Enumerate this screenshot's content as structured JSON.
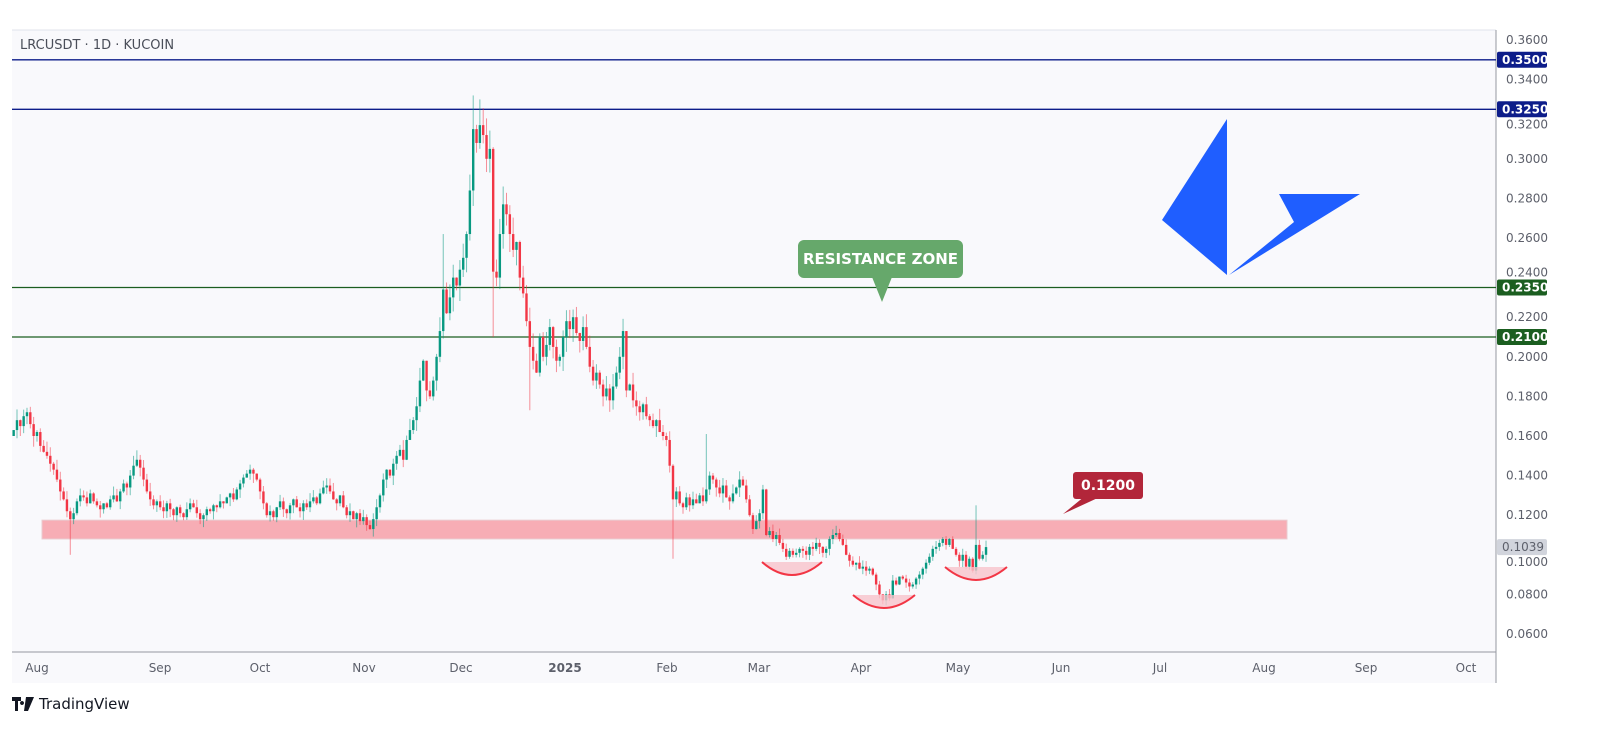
{
  "header": {
    "symbol": "LRCUSDT · 1D · KUCOIN"
  },
  "branding": {
    "name": "TradingView"
  },
  "colors": {
    "up": "#089981",
    "down": "#f23645",
    "navy_line": "#0d1d8a",
    "green_line": "#1b5e20",
    "zone": "#f7a9b2",
    "cup": "#f23645",
    "logo": "#1f5eff",
    "resistance_callout": "#66a86b",
    "level_callout": "#b2263a"
  },
  "chart_data": {
    "type": "candlestick",
    "title": "LRCUSDT · 1D · KUCOIN",
    "interval": "1D",
    "ylim": [
      0.05,
      0.365
    ],
    "y_ticks": [
      "0.0600",
      "0.0800",
      "0.1000",
      "0.1200",
      "0.1400",
      "0.1600",
      "0.1800",
      "0.2000",
      "0.2200",
      "0.2400",
      "0.2600",
      "0.2800",
      "0.3000",
      "0.3200",
      "0.3400",
      "0.3600"
    ],
    "x_ticks": [
      "Aug",
      "Sep",
      "Oct",
      "Nov",
      "Dec",
      "2025",
      "Feb",
      "Mar",
      "Apr",
      "May",
      "Jun",
      "Jul",
      "Aug",
      "Sep",
      "Oct"
    ],
    "grid": false,
    "first_open": 0.16,
    "closes": [
      0.163,
      0.168,
      0.165,
      0.17,
      0.172,
      0.166,
      0.16,
      0.162,
      0.155,
      0.152,
      0.15,
      0.146,
      0.143,
      0.138,
      0.132,
      0.128,
      0.122,
      0.118,
      0.121,
      0.127,
      0.13,
      0.129,
      0.126,
      0.131,
      0.127,
      0.125,
      0.123,
      0.126,
      0.124,
      0.128,
      0.13,
      0.127,
      0.132,
      0.136,
      0.134,
      0.14,
      0.145,
      0.148,
      0.144,
      0.138,
      0.132,
      0.128,
      0.125,
      0.127,
      0.124,
      0.122,
      0.126,
      0.123,
      0.12,
      0.124,
      0.121,
      0.119,
      0.123,
      0.126,
      0.124,
      0.121,
      0.118,
      0.12,
      0.123,
      0.122,
      0.125,
      0.124,
      0.127,
      0.126,
      0.129,
      0.131,
      0.128,
      0.133,
      0.136,
      0.139,
      0.141,
      0.143,
      0.141,
      0.138,
      0.132,
      0.126,
      0.12,
      0.122,
      0.119,
      0.124,
      0.127,
      0.123,
      0.121,
      0.125,
      0.128,
      0.124,
      0.122,
      0.126,
      0.124,
      0.127,
      0.129,
      0.126,
      0.131,
      0.134,
      0.135,
      0.132,
      0.128,
      0.126,
      0.13,
      0.124,
      0.12,
      0.122,
      0.118,
      0.121,
      0.117,
      0.119,
      0.115,
      0.113,
      0.118,
      0.124,
      0.13,
      0.138,
      0.143,
      0.14,
      0.146,
      0.15,
      0.153,
      0.148,
      0.158,
      0.163,
      0.168,
      0.175,
      0.188,
      0.198,
      0.183,
      0.18,
      0.188,
      0.2,
      0.213,
      0.234,
      0.222,
      0.23,
      0.24,
      0.236,
      0.244,
      0.25,
      0.262,
      0.284,
      0.315,
      0.308,
      0.317,
      0.312,
      0.3,
      0.305,
      0.243,
      0.24,
      0.262,
      0.277,
      0.272,
      0.262,
      0.254,
      0.258,
      0.24,
      0.232,
      0.218,
      0.205,
      0.198,
      0.192,
      0.21,
      0.2,
      0.206,
      0.215,
      0.205,
      0.198,
      0.2,
      0.21,
      0.218,
      0.214,
      0.22,
      0.212,
      0.208,
      0.215,
      0.205,
      0.195,
      0.188,
      0.192,
      0.186,
      0.18,
      0.184,
      0.178,
      0.185,
      0.192,
      0.2,
      0.213,
      0.183,
      0.186,
      0.178,
      0.175,
      0.172,
      0.176,
      0.17,
      0.168,
      0.165,
      0.168,
      0.162,
      0.16,
      0.158,
      0.145,
      0.128,
      0.132,
      0.126,
      0.124,
      0.129,
      0.125,
      0.128,
      0.126,
      0.13,
      0.127,
      0.133,
      0.14,
      0.138,
      0.134,
      0.131,
      0.135,
      0.129,
      0.127,
      0.131,
      0.134,
      0.138,
      0.135,
      0.128,
      0.12,
      0.113,
      0.117,
      0.121,
      0.133,
      0.11,
      0.112,
      0.108,
      0.11,
      0.106,
      0.103,
      0.099,
      0.102,
      0.1,
      0.101,
      0.103,
      0.102,
      0.1,
      0.104,
      0.103,
      0.106,
      0.104,
      0.101,
      0.103,
      0.108,
      0.11,
      0.111,
      0.108,
      0.105,
      0.1,
      0.097,
      0.095,
      0.096,
      0.093,
      0.094,
      0.092,
      0.093,
      0.09,
      0.085,
      0.08,
      0.077,
      0.08,
      0.078,
      0.087,
      0.085,
      0.089,
      0.088,
      0.086,
      0.084,
      0.085,
      0.088,
      0.09,
      0.093,
      0.096,
      0.099,
      0.103,
      0.104,
      0.106,
      0.108,
      0.105,
      0.108,
      0.103,
      0.1,
      0.097,
      0.1,
      0.094,
      0.098,
      0.092,
      0.105,
      0.098,
      0.1,
      0.1039
    ],
    "notable_wicks": [
      {
        "index": 17,
        "low": 0.1
      },
      {
        "index": 129,
        "high": 0.262
      },
      {
        "index": 138,
        "high": 0.332
      },
      {
        "index": 140,
        "high": 0.33
      },
      {
        "index": 144,
        "low": 0.21
      },
      {
        "index": 155,
        "low": 0.173
      },
      {
        "index": 198,
        "low": 0.098
      },
      {
        "index": 208,
        "high": 0.161
      },
      {
        "index": 261,
        "low": 0.075
      },
      {
        "index": 289,
        "high": 0.125
      }
    ],
    "horizontal_levels": [
      {
        "price": 0.35,
        "label": "0.3500",
        "color": "#0d1d8a"
      },
      {
        "price": 0.325,
        "label": "0.3250",
        "color": "#0d1d8a"
      },
      {
        "price": 0.235,
        "label": "0.2350",
        "color": "#1b5e20"
      },
      {
        "price": 0.21,
        "label": "0.2100",
        "color": "#1b5e20"
      }
    ],
    "support_zone": {
      "from": 0.108,
      "to": 0.1175
    },
    "last_price": {
      "value": 0.1039,
      "label": "0.1039"
    },
    "annotations": {
      "resistance": "RESISTANCE ZONE",
      "level": "0.1200"
    },
    "pattern": "inverse head and shoulders"
  }
}
